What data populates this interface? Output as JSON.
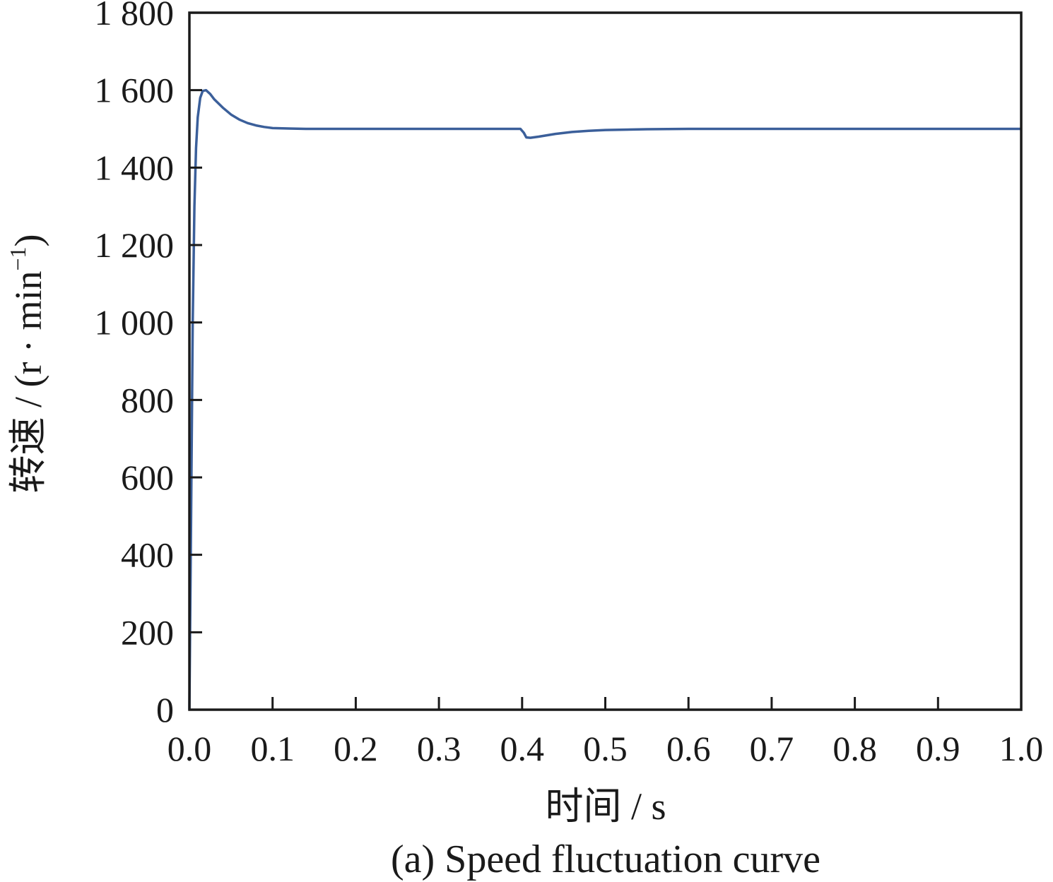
{
  "chart_data": {
    "type": "line",
    "caption": "(a) Speed fluctuation curve",
    "xlabel": "时间 / s",
    "ylabel_main": "转速 / (r · min",
    "ylabel_sup": "−1",
    "ylabel_close": ")",
    "xlim": [
      0,
      1.0
    ],
    "ylim": [
      0,
      1800
    ],
    "x_ticks": [
      0,
      0.1,
      0.2,
      0.3,
      0.4,
      0.5,
      0.6,
      0.7,
      0.8,
      0.9,
      1.0
    ],
    "x_tick_labels": [
      "0.0",
      "0.1",
      "0.2",
      "0.3",
      "0.4",
      "0.5",
      "0.6",
      "0.7",
      "0.8",
      "0.9",
      "1.0"
    ],
    "y_ticks": [
      0,
      200,
      400,
      600,
      800,
      1000,
      1200,
      1400,
      1600,
      1800
    ],
    "y_tick_labels": [
      "0",
      "200",
      "400",
      "600",
      "800",
      "1 000",
      "1 200",
      "1 400",
      "1 600",
      "1 800"
    ],
    "grid": false,
    "line_color": "#3b5f9a",
    "series": [
      {
        "x": [
          0,
          0.002,
          0.004,
          0.006,
          0.008,
          0.01,
          0.013,
          0.016,
          0.02,
          0.025,
          0.03,
          0.04,
          0.05,
          0.06,
          0.07,
          0.08,
          0.09,
          0.1,
          0.12,
          0.14,
          0.16,
          0.18,
          0.2,
          0.25,
          0.3,
          0.35,
          0.398,
          0.402,
          0.405,
          0.41,
          0.42,
          0.44,
          0.46,
          0.48,
          0.5,
          0.55,
          0.6,
          0.7,
          0.8,
          0.9,
          1.0
        ],
        "y": [
          0,
          500,
          1000,
          1300,
          1450,
          1530,
          1580,
          1598,
          1600,
          1590,
          1576,
          1555,
          1537,
          1524,
          1515,
          1509,
          1505,
          1502,
          1501,
          1500,
          1500,
          1500,
          1500,
          1500,
          1500,
          1500,
          1500,
          1490,
          1478,
          1477,
          1480,
          1487,
          1492,
          1495,
          1497,
          1499,
          1500,
          1500,
          1500,
          1500,
          1500
        ]
      }
    ]
  }
}
